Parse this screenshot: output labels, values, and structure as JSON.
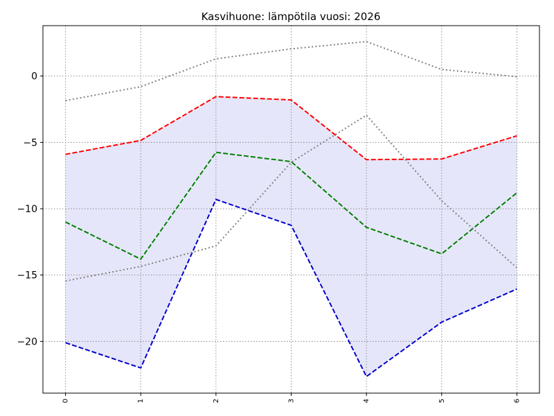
{
  "chart_data": {
    "type": "line",
    "title": "Kasvihuone: lämpötila vuosi: 2026",
    "xlabel": "",
    "ylabel": "",
    "x": [
      0,
      1,
      2,
      3,
      4,
      5,
      6
    ],
    "xlim": [
      -0.3,
      6.3
    ],
    "ylim": [
      -23.9,
      3.8
    ],
    "yticks": [
      0,
      -5,
      -10,
      -15,
      -20
    ],
    "ytick_labels": [
      "0",
      "−5",
      "−10",
      "−15",
      "−20"
    ],
    "xtick_labels": [
      "0",
      "1",
      "2",
      "3",
      "4",
      "5",
      "6"
    ],
    "grid": true,
    "legend": "none",
    "band": {
      "lower_series": 2,
      "upper_series": 0,
      "color": "#e6e6fa"
    },
    "series": [
      {
        "values": [
          -5.9,
          -4.85,
          -1.55,
          -1.8,
          -6.3,
          -6.25,
          -4.5
        ],
        "color": "#ff0000",
        "style": "dashed"
      },
      {
        "values": [
          -11.0,
          -13.8,
          -5.75,
          -6.45,
          -11.4,
          -13.4,
          -8.8
        ],
        "color": "#008000",
        "style": "dashed"
      },
      {
        "values": [
          -20.1,
          -22.0,
          -9.3,
          -11.25,
          -22.65,
          -18.55,
          -16.05
        ],
        "color": "#0000cd",
        "style": "dashed"
      },
      {
        "values": [
          -1.85,
          -0.8,
          1.3,
          2.05,
          2.6,
          0.5,
          -0.05
        ],
        "color": "#808080",
        "style": "dotted"
      },
      {
        "values": [
          -15.45,
          -14.35,
          -12.8,
          -6.5,
          -2.95,
          -9.4,
          -14.45
        ],
        "color": "#808080",
        "style": "dotted"
      }
    ]
  }
}
